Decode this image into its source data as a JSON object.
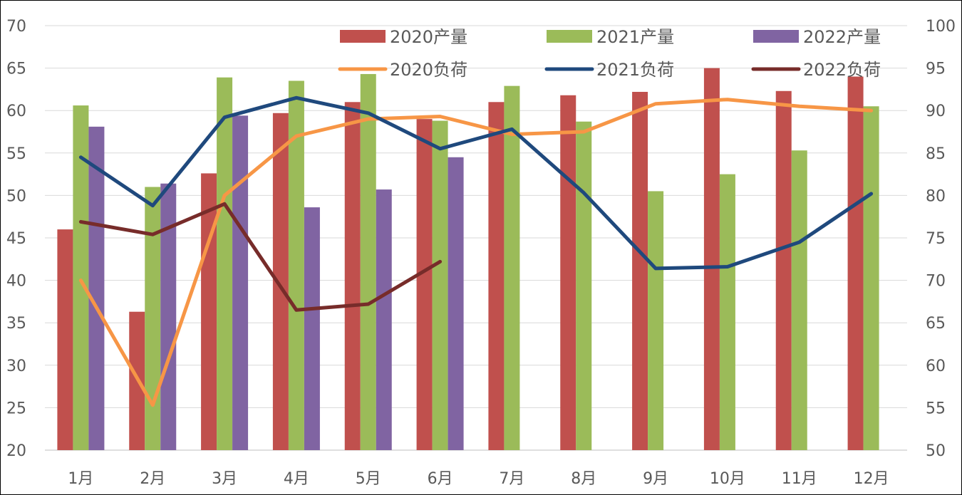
{
  "chart_data": {
    "type": "bar",
    "title": "",
    "categories": [
      "1月",
      "2月",
      "3月",
      "4月",
      "5月",
      "6月",
      "7月",
      "8月",
      "9月",
      "10月",
      "11月",
      "12月"
    ],
    "y_left": {
      "min": 20,
      "max": 70,
      "step": 5,
      "ticks": [
        "20",
        "25",
        "30",
        "35",
        "40",
        "45",
        "50",
        "55",
        "60",
        "65",
        "70"
      ]
    },
    "y_right": {
      "min": 50,
      "max": 100,
      "step": 5,
      "ticks": [
        "50",
        "55",
        "60",
        "65",
        "70",
        "75",
        "80",
        "85",
        "90",
        "95",
        "100"
      ]
    },
    "grid": true,
    "legend_position": "top-right",
    "bar_series": [
      {
        "name": "2020产量",
        "color": "#c0504d",
        "values": [
          46,
          36.3,
          52.6,
          59.7,
          61,
          59,
          61,
          61.8,
          62.2,
          65,
          62.3,
          64
        ]
      },
      {
        "name": "2021产量",
        "color": "#9bbb59",
        "values": [
          60.6,
          51,
          63.9,
          63.5,
          64.3,
          58.8,
          62.9,
          58.7,
          50.5,
          52.5,
          55.3,
          60.5
        ]
      },
      {
        "name": "2022产量",
        "color": "#8064a2",
        "values": [
          58.1,
          51.4,
          59.4,
          48.6,
          50.7,
          54.5,
          null,
          null,
          null,
          null,
          null,
          null
        ]
      }
    ],
    "line_series": [
      {
        "name": "2020负荷",
        "color": "#f79646",
        "axis": "right",
        "values": [
          70,
          55.3,
          80,
          87,
          89,
          89.3,
          87.2,
          87.5,
          90.8,
          91.3,
          90.5,
          90
        ]
      },
      {
        "name": "2021负荷",
        "color": "#1f497d",
        "axis": "right",
        "values": [
          84.5,
          78.8,
          89.2,
          91.5,
          89.7,
          85.5,
          87.8,
          80.3,
          71.4,
          71.6,
          74.5,
          80.2
        ]
      },
      {
        "name": "2022负荷",
        "color": "#772c2a",
        "axis": "right",
        "values": [
          76.9,
          75.4,
          79,
          66.5,
          67.2,
          72.2,
          null,
          null,
          null,
          null,
          null,
          null
        ]
      }
    ]
  }
}
